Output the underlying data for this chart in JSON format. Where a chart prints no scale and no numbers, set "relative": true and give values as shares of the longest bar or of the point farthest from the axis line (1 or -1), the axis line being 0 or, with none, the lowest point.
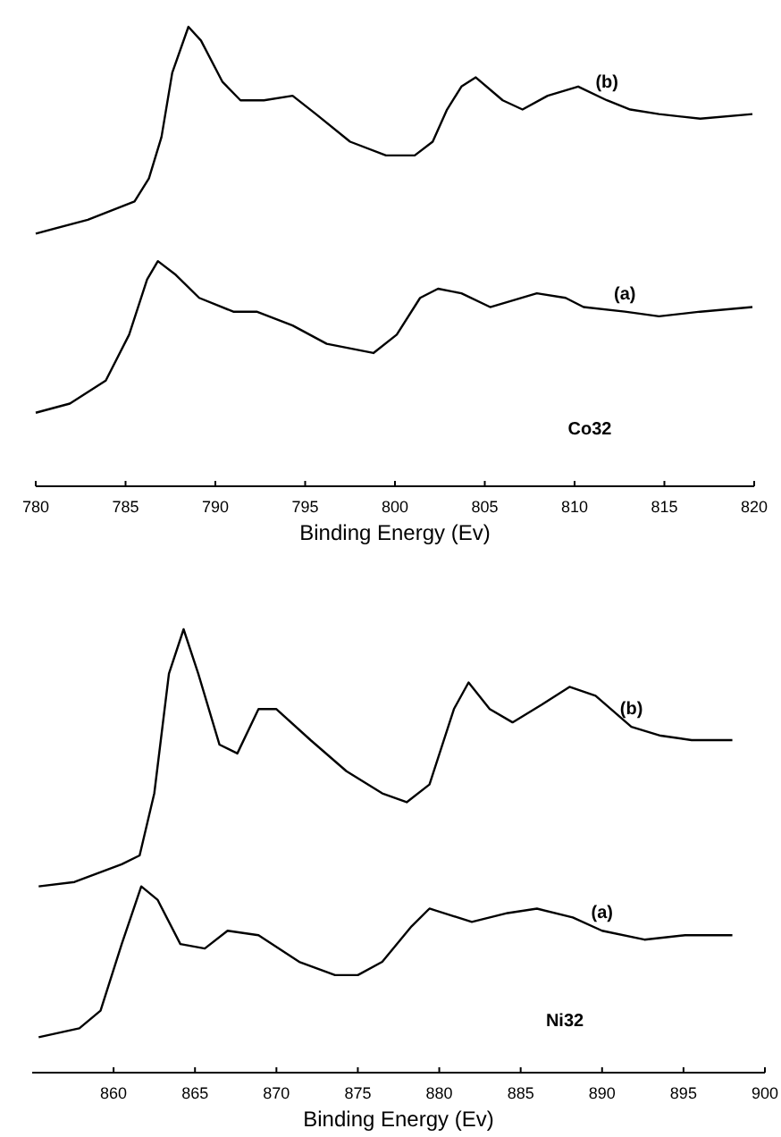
{
  "chart_data": [
    {
      "type": "line",
      "relative": true,
      "xlabel": "Binding Energy (Ev)",
      "annotations": [
        "Co32"
      ],
      "xlim": [
        780,
        820
      ],
      "xticks": [
        780,
        785,
        790,
        795,
        800,
        805,
        810,
        815,
        820
      ],
      "series": [
        {
          "name": "(b)",
          "color": "#000000",
          "x": [
            780.0,
            782.9,
            785.5,
            786.3,
            787.0,
            787.6,
            788.5,
            789.2,
            790.4,
            791.4,
            792.7,
            794.3,
            795.6,
            797.5,
            799.5,
            801.1,
            802.1,
            802.9,
            803.7,
            804.5,
            806.0,
            807.1,
            808.5,
            810.2,
            811.8,
            813.1,
            814.7,
            817.0,
            819.9
          ],
          "values": [
            0.55,
            0.58,
            0.62,
            0.67,
            0.76,
            0.9,
            1.0,
            0.97,
            0.88,
            0.84,
            0.84,
            0.85,
            0.81,
            0.75,
            0.72,
            0.72,
            0.75,
            0.82,
            0.87,
            0.89,
            0.84,
            0.82,
            0.85,
            0.87,
            0.84,
            0.82,
            0.81,
            0.8,
            0.81
          ]
        },
        {
          "name": "(a)",
          "color": "#000000",
          "x": [
            780.0,
            781.9,
            783.9,
            785.2,
            786.2,
            786.8,
            787.8,
            789.1,
            791.0,
            792.3,
            794.3,
            796.2,
            798.8,
            800.1,
            801.4,
            802.4,
            803.7,
            805.3,
            807.9,
            809.5,
            810.5,
            812.8,
            814.7,
            817.0,
            819.9
          ],
          "values": [
            0.16,
            0.18,
            0.23,
            0.33,
            0.45,
            0.49,
            0.46,
            0.41,
            0.38,
            0.38,
            0.35,
            0.31,
            0.29,
            0.33,
            0.41,
            0.43,
            0.42,
            0.39,
            0.42,
            0.41,
            0.39,
            0.38,
            0.37,
            0.38,
            0.39
          ]
        }
      ]
    },
    {
      "type": "line",
      "relative": true,
      "xlabel": "Binding Energy (Ev)",
      "annotations": [
        "Ni32"
      ],
      "xlim": [
        855,
        900
      ],
      "xticks": [
        860,
        865,
        870,
        875,
        880,
        885,
        890,
        895,
        900
      ],
      "series": [
        {
          "name": "(b)",
          "color": "#000000",
          "x": [
            855.4,
            857.6,
            860.5,
            861.6,
            862.5,
            863.4,
            864.3,
            865.2,
            866.5,
            867.6,
            868.9,
            870.0,
            872.1,
            874.3,
            876.5,
            878.0,
            879.4,
            880.9,
            881.8,
            883.1,
            884.5,
            886.3,
            888.0,
            889.6,
            891.8,
            893.6,
            895.5,
            898.0
          ],
          "values": [
            0.42,
            0.43,
            0.47,
            0.49,
            0.63,
            0.9,
            1.0,
            0.9,
            0.74,
            0.72,
            0.82,
            0.82,
            0.75,
            0.68,
            0.63,
            0.61,
            0.65,
            0.82,
            0.88,
            0.82,
            0.79,
            0.83,
            0.87,
            0.85,
            0.78,
            0.76,
            0.75,
            0.75
          ]
        },
        {
          "name": "(a)",
          "color": "#000000",
          "x": [
            855.4,
            857.9,
            859.2,
            860.5,
            861.7,
            862.7,
            864.1,
            865.6,
            867.0,
            868.9,
            871.4,
            873.6,
            875.0,
            876.5,
            878.3,
            879.4,
            882.0,
            884.2,
            886.0,
            888.2,
            890.0,
            892.6,
            895.1,
            898.0
          ],
          "values": [
            0.08,
            0.1,
            0.14,
            0.29,
            0.42,
            0.39,
            0.29,
            0.28,
            0.32,
            0.31,
            0.25,
            0.22,
            0.22,
            0.25,
            0.33,
            0.37,
            0.34,
            0.36,
            0.37,
            0.35,
            0.32,
            0.3,
            0.31,
            0.31
          ]
        }
      ]
    }
  ]
}
